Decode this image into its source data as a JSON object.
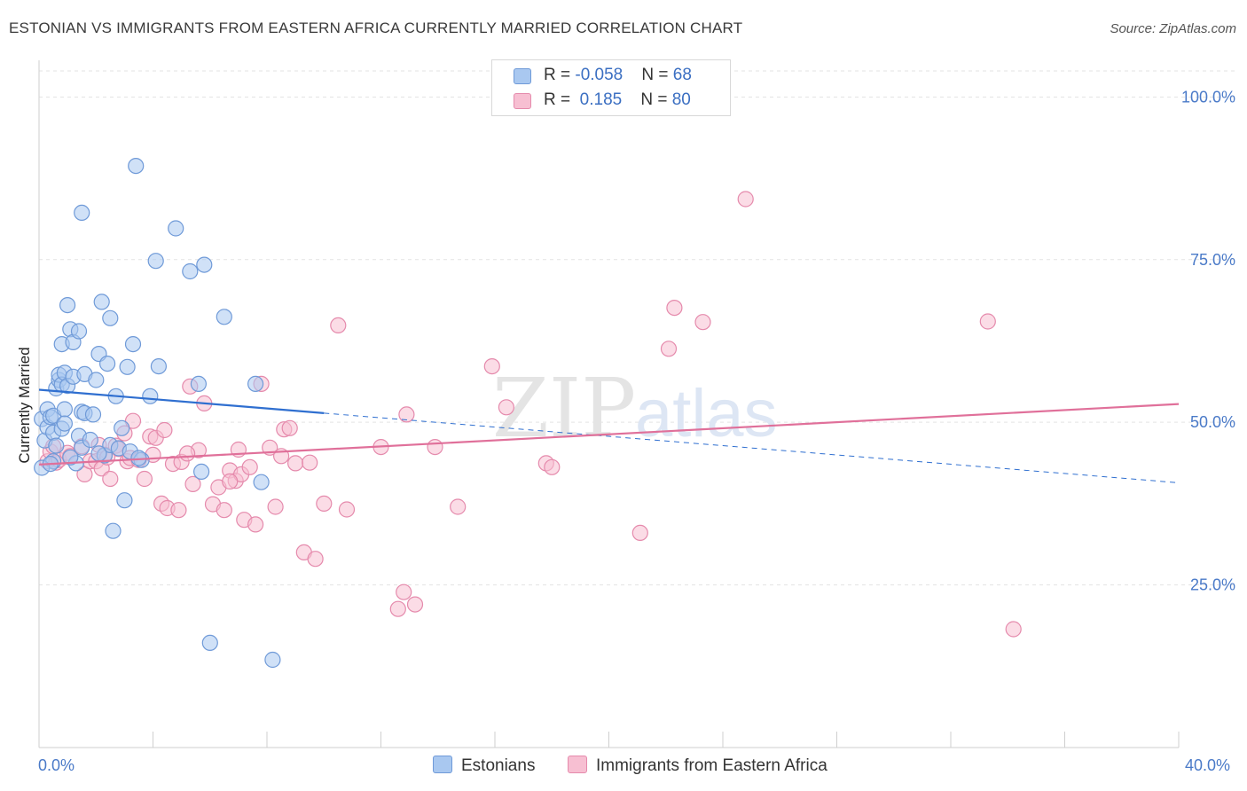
{
  "header": {
    "title": "ESTONIAN VS IMMIGRANTS FROM EASTERN AFRICA CURRENTLY MARRIED CORRELATION CHART",
    "source": "Source: ZipAtlas.com"
  },
  "watermark": {
    "part1": "ZIP",
    "part2": "atlas"
  },
  "legend": {
    "rows": [
      {
        "r_label": "R = ",
        "r_value": "-0.058",
        "n_label": "N = ",
        "n_value": "68",
        "color": "#a9c8f0",
        "border": "#6f9ad8"
      },
      {
        "r_label": "R = ",
        "r_value": " 0.185",
        "n_label": "N = ",
        "n_value": "80",
        "color": "#f7bfd2",
        "border": "#e58aac"
      }
    ]
  },
  "bottom_legend": [
    {
      "label": "Estonians",
      "color": "#a9c8f0",
      "border": "#6f9ad8"
    },
    {
      "label": "Immigrants from Eastern Africa",
      "color": "#f7bfd2",
      "border": "#e58aac"
    }
  ],
  "chart_data": {
    "type": "scatter",
    "title": "ESTONIAN VS IMMIGRANTS FROM EASTERN AFRICA CURRENTLY MARRIED CORRELATION CHART",
    "ylabel": "Currently Married",
    "xlabel": "",
    "xlim": [
      0,
      40
    ],
    "ylim": [
      0,
      104
    ],
    "x_tick_labels": [
      "0.0%",
      "40.0%"
    ],
    "y_ticks": [
      25,
      50,
      75,
      100
    ],
    "y_tick_labels": [
      "25.0%",
      "50.0%",
      "75.0%",
      "100.0%"
    ],
    "grid": true,
    "legend_position": "top-center",
    "series": [
      {
        "name": "Estonians",
        "color": "#6f9ad8",
        "fill": "#a9c8f0",
        "trend": {
          "x": [
            0,
            10
          ],
          "y": [
            55,
            51.4
          ],
          "dashed_to": [
            40,
            40.7
          ],
          "color": "#2f6fd0"
        },
        "points": [
          [
            0.1,
            50.5
          ],
          [
            0.2,
            47.2
          ],
          [
            0.3,
            49.2
          ],
          [
            0.3,
            52.0
          ],
          [
            0.4,
            50.8
          ],
          [
            0.5,
            48.4
          ],
          [
            0.5,
            44.0
          ],
          [
            0.5,
            51.0
          ],
          [
            0.6,
            55.2
          ],
          [
            0.7,
            56.5
          ],
          [
            0.7,
            57.3
          ],
          [
            0.8,
            55.8
          ],
          [
            0.8,
            62.0
          ],
          [
            0.8,
            49.0
          ],
          [
            0.9,
            52.0
          ],
          [
            0.9,
            57.6
          ],
          [
            0.9,
            49.8
          ],
          [
            1.0,
            55.6
          ],
          [
            1.0,
            68.0
          ],
          [
            1.1,
            64.3
          ],
          [
            1.2,
            57.0
          ],
          [
            1.2,
            62.3
          ],
          [
            1.3,
            43.7
          ],
          [
            1.4,
            47.9
          ],
          [
            1.4,
            64.0
          ],
          [
            1.5,
            46.1
          ],
          [
            1.5,
            51.6
          ],
          [
            1.5,
            82.2
          ],
          [
            1.6,
            51.4
          ],
          [
            1.6,
            57.4
          ],
          [
            1.8,
            47.3
          ],
          [
            1.9,
            51.2
          ],
          [
            2.0,
            56.5
          ],
          [
            2.1,
            60.5
          ],
          [
            2.2,
            68.5
          ],
          [
            2.3,
            44.9
          ],
          [
            2.4,
            59.0
          ],
          [
            2.5,
            46.5
          ],
          [
            2.5,
            66.0
          ],
          [
            2.6,
            33.3
          ],
          [
            2.7,
            54.0
          ],
          [
            2.8,
            46.0
          ],
          [
            2.9,
            49.1
          ],
          [
            3.0,
            38.0
          ],
          [
            3.1,
            58.5
          ],
          [
            3.2,
            45.5
          ],
          [
            3.3,
            62.0
          ],
          [
            3.4,
            89.4
          ],
          [
            3.6,
            44.2
          ],
          [
            3.9,
            54.0
          ],
          [
            4.1,
            74.8
          ],
          [
            4.2,
            58.6
          ],
          [
            4.8,
            79.8
          ],
          [
            5.3,
            73.2
          ],
          [
            5.6,
            55.9
          ],
          [
            5.7,
            42.4
          ],
          [
            5.8,
            74.2
          ],
          [
            6.0,
            16.1
          ],
          [
            6.5,
            66.2
          ],
          [
            7.6,
            55.9
          ],
          [
            7.8,
            40.8
          ],
          [
            8.2,
            13.5
          ],
          [
            0.1,
            43.0
          ],
          [
            0.4,
            43.6
          ],
          [
            0.6,
            46.4
          ],
          [
            1.1,
            44.6
          ],
          [
            2.1,
            45.2
          ],
          [
            3.5,
            44.5
          ]
        ]
      },
      {
        "name": "Immigrants from Eastern Africa",
        "color": "#e58aac",
        "fill": "#f7bfd2",
        "trend": {
          "x": [
            0,
            40
          ],
          "y": [
            43.5,
            52.8
          ],
          "color": "#e0709a"
        },
        "points": [
          [
            0.3,
            44.0
          ],
          [
            0.4,
            45.5
          ],
          [
            0.5,
            46.3
          ],
          [
            0.6,
            43.8
          ],
          [
            0.7,
            44.2
          ],
          [
            1.0,
            45.3
          ],
          [
            1.1,
            44.8
          ],
          [
            1.5,
            46.3
          ],
          [
            1.6,
            42.0
          ],
          [
            1.8,
            44.0
          ],
          [
            2.0,
            44.0
          ],
          [
            2.1,
            46.5
          ],
          [
            2.2,
            42.9
          ],
          [
            2.3,
            45.0
          ],
          [
            2.4,
            44.6
          ],
          [
            2.5,
            41.3
          ],
          [
            2.7,
            46.4
          ],
          [
            2.8,
            45.9
          ],
          [
            3.0,
            48.3
          ],
          [
            3.1,
            44.0
          ],
          [
            3.2,
            44.5
          ],
          [
            3.3,
            50.2
          ],
          [
            3.5,
            44.2
          ],
          [
            3.7,
            41.3
          ],
          [
            3.9,
            47.8
          ],
          [
            4.0,
            45.0
          ],
          [
            4.1,
            47.6
          ],
          [
            4.3,
            37.5
          ],
          [
            4.4,
            48.8
          ],
          [
            4.5,
            36.8
          ],
          [
            4.7,
            43.6
          ],
          [
            4.9,
            36.5
          ],
          [
            5.0,
            43.9
          ],
          [
            5.3,
            55.5
          ],
          [
            5.4,
            40.5
          ],
          [
            5.6,
            45.7
          ],
          [
            5.8,
            52.9
          ],
          [
            6.1,
            37.4
          ],
          [
            6.3,
            40.0
          ],
          [
            6.5,
            36.5
          ],
          [
            6.7,
            42.6
          ],
          [
            6.9,
            41.0
          ],
          [
            7.0,
            45.8
          ],
          [
            7.1,
            42.0
          ],
          [
            7.2,
            35.0
          ],
          [
            7.4,
            43.1
          ],
          [
            7.6,
            34.3
          ],
          [
            7.8,
            55.9
          ],
          [
            8.1,
            46.1
          ],
          [
            8.3,
            37.0
          ],
          [
            8.5,
            44.8
          ],
          [
            8.6,
            48.9
          ],
          [
            8.8,
            49.1
          ],
          [
            9.0,
            43.7
          ],
          [
            9.3,
            30.0
          ],
          [
            9.5,
            43.8
          ],
          [
            9.7,
            29.0
          ],
          [
            10.0,
            37.5
          ],
          [
            10.5,
            64.9
          ],
          [
            10.8,
            36.6
          ],
          [
            12.0,
            46.2
          ],
          [
            12.6,
            21.3
          ],
          [
            12.8,
            23.9
          ],
          [
            12.9,
            51.2
          ],
          [
            13.2,
            22.0
          ],
          [
            13.9,
            46.2
          ],
          [
            14.7,
            37.0
          ],
          [
            15.9,
            58.6
          ],
          [
            16.4,
            52.3
          ],
          [
            17.8,
            43.7
          ],
          [
            18.0,
            43.1
          ],
          [
            21.1,
            33.0
          ],
          [
            22.1,
            61.3
          ],
          [
            22.3,
            67.6
          ],
          [
            23.3,
            65.4
          ],
          [
            24.8,
            84.3
          ],
          [
            33.3,
            65.5
          ],
          [
            34.2,
            18.2
          ],
          [
            5.2,
            45.2
          ],
          [
            6.7,
            40.9
          ]
        ]
      }
    ]
  }
}
